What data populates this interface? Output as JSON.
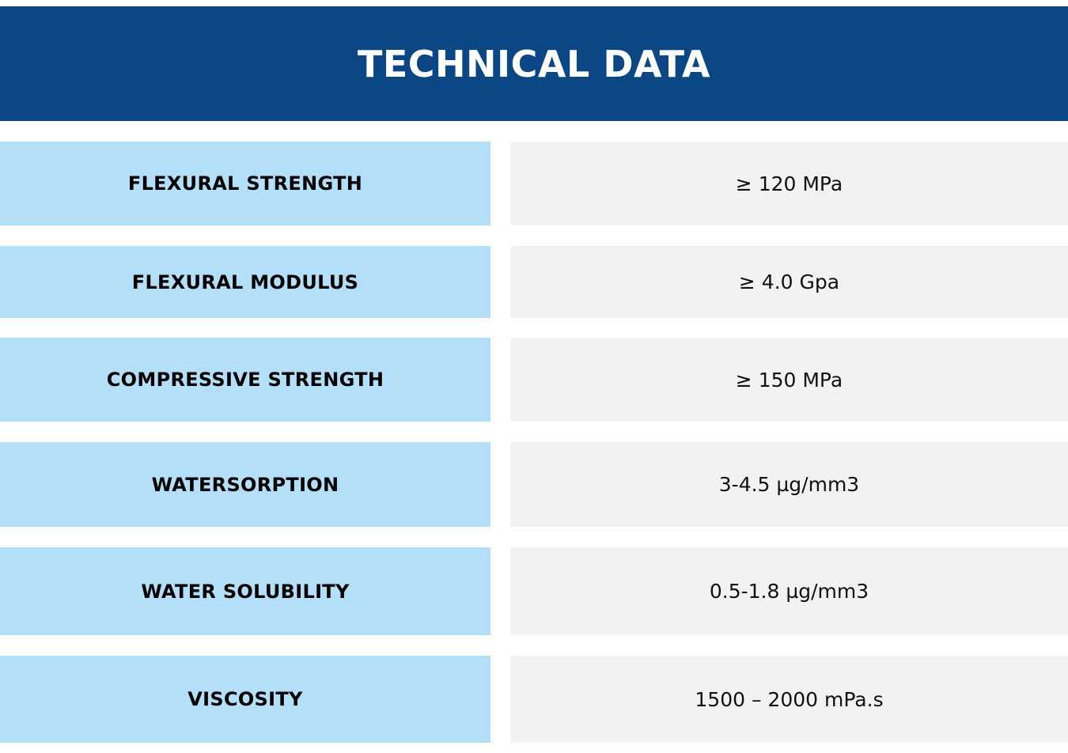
{
  "header": {
    "title": "TECHNICAL DATA"
  },
  "colors": {
    "header_bg": "#0b4785",
    "label_bg": "#b3dff8",
    "value_bg": "#f2f2f2"
  },
  "rows": [
    {
      "label": "FLEXURAL STRENGTH",
      "value": "≥ 120 MPa"
    },
    {
      "label": "FLEXURAL MODULUS",
      "value": "≥ 4.0 Gpa"
    },
    {
      "label": "COMPRESSIVE STRENGTH",
      "value": "≥ 150 MPa"
    },
    {
      "label": "WATERSORPTION",
      "value": "3-4.5 µg/mm3"
    },
    {
      "label": "WATER SOLUBILITY",
      "value": "0.5-1.8 µg/mm3"
    },
    {
      "label": "VISCOSITY",
      "value": "1500 – 2000 mPa.s"
    }
  ]
}
